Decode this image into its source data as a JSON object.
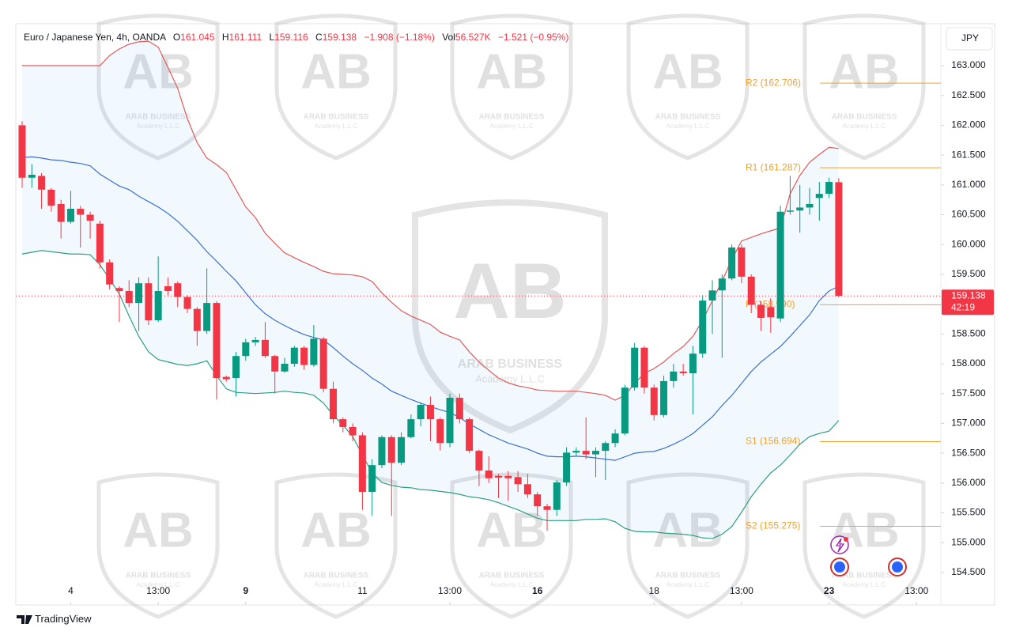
{
  "header": {
    "keys": [
      "O",
      "H",
      "L",
      "C"
    ],
    "change": "−1.908 (−1.18%)",
    "volume_key": "Vol",
    "volume": "56.527K",
    "volume_change": "−1.521 (−0.95%)"
  },
  "watermark": {
    "logo": "AB",
    "name": "ARAB BUSINESS",
    "tagline": "Academy L.L.C"
  },
  "footer": {
    "brand": "TradingView"
  },
  "chart_data": {
    "type": "candlestick",
    "title": "Euro / Japanese Yen, 4h, OANDA",
    "currency": "JPY",
    "up_color": "#089981",
    "down_color": "#f23645",
    "open": [
      162.0,
      161.12,
      161.15,
      160.92,
      160.68,
      160.38,
      160.6,
      160.5,
      160.35,
      159.7,
      159.27,
      159.22,
      159.02,
      159.35,
      158.73,
      159.3,
      159.35,
      159.12,
      158.92,
      158.55,
      159.02,
      157.78,
      157.76,
      158.13,
      158.36,
      158.4,
      158.13,
      157.87,
      158.0,
      158.27,
      157.98,
      158.42,
      157.58,
      157.07,
      156.94,
      156.8,
      155.85,
      156.3,
      156.77,
      156.34,
      156.77,
      157.07,
      157.31,
      157.07,
      156.67,
      157.43,
      157.07,
      156.54,
      156.21,
      156.12,
      156.12,
      156.1,
      155.98,
      155.81,
      155.61,
      155.55,
      156.01,
      156.51,
      156.54,
      156.48,
      156.54,
      156.67,
      156.83,
      157.6,
      158.27,
      157.6,
      157.14,
      157.71,
      157.87,
      157.84,
      158.17,
      159.06,
      159.23,
      159.43,
      159.95,
      159.46,
      158.99,
      158.95,
      158.76,
      160.55,
      160.57,
      160.62,
      160.78,
      160.85,
      161.045
    ],
    "high": [
      162.07,
      161.35,
      161.2,
      160.95,
      160.75,
      160.9,
      160.65,
      160.55,
      160.4,
      159.75,
      159.3,
      159.4,
      159.45,
      159.45,
      159.8,
      159.45,
      159.38,
      159.15,
      158.95,
      159.6,
      159.05,
      157.8,
      158.2,
      158.42,
      158.45,
      158.7,
      158.15,
      158.1,
      158.3,
      158.3,
      158.65,
      158.45,
      157.7,
      157.1,
      157.0,
      156.85,
      156.4,
      156.8,
      156.8,
      156.85,
      157.15,
      157.35,
      157.45,
      157.1,
      157.5,
      157.5,
      157.1,
      156.56,
      156.45,
      156.15,
      156.2,
      156.2,
      156.15,
      155.85,
      155.65,
      156.05,
      156.6,
      156.6,
      157.1,
      156.6,
      156.7,
      156.9,
      157.65,
      158.35,
      158.3,
      157.65,
      157.8,
      158.0,
      158.0,
      158.3,
      159.15,
      159.4,
      159.5,
      160.0,
      160.0,
      159.5,
      159.05,
      159.1,
      160.65,
      161.15,
      161.0,
      160.95,
      161.05,
      161.12,
      161.111
    ],
    "low": [
      160.95,
      160.95,
      160.6,
      160.55,
      160.1,
      160.35,
      159.95,
      160.1,
      159.6,
      159.25,
      158.7,
      158.95,
      158.55,
      158.65,
      158.7,
      159.15,
      158.95,
      158.85,
      158.3,
      158.5,
      157.4,
      157.7,
      157.45,
      158.05,
      158.3,
      158.1,
      157.5,
      157.85,
      157.95,
      157.9,
      157.95,
      157.52,
      157.0,
      156.85,
      156.7,
      155.55,
      155.45,
      156.25,
      155.45,
      156.3,
      156.75,
      156.95,
      156.7,
      156.55,
      156.6,
      157.0,
      156.5,
      155.95,
      156.0,
      155.75,
      155.7,
      155.85,
      155.75,
      155.45,
      155.2,
      155.45,
      155.95,
      156.45,
      156.4,
      156.1,
      156.05,
      156.6,
      156.8,
      157.55,
      157.5,
      157.05,
      157.1,
      157.6,
      157.8,
      157.15,
      158.1,
      158.5,
      158.1,
      159.4,
      159.35,
      158.85,
      158.55,
      158.52,
      158.7,
      160.5,
      160.2,
      160.5,
      160.4,
      160.78,
      159.116
    ],
    "close": [
      161.12,
      161.17,
      160.92,
      160.65,
      160.38,
      160.6,
      160.5,
      160.4,
      159.7,
      159.33,
      159.22,
      159.02,
      159.35,
      158.73,
      159.22,
      159.22,
      159.12,
      158.92,
      158.55,
      159.02,
      157.76,
      157.74,
      158.13,
      158.36,
      158.4,
      158.13,
      157.87,
      158.0,
      158.27,
      157.98,
      158.42,
      157.58,
      157.07,
      156.94,
      156.8,
      155.85,
      156.3,
      156.77,
      156.34,
      156.77,
      157.07,
      157.31,
      157.07,
      156.67,
      157.43,
      157.07,
      156.54,
      156.21,
      156.08,
      156.09,
      156.08,
      155.98,
      155.81,
      155.61,
      155.55,
      156.01,
      156.51,
      156.54,
      156.48,
      156.54,
      156.67,
      156.83,
      157.6,
      158.27,
      157.6,
      157.14,
      157.71,
      157.87,
      157.84,
      158.17,
      159.06,
      159.23,
      159.43,
      159.95,
      159.46,
      158.99,
      158.77,
      158.78,
      160.55,
      160.57,
      160.62,
      160.68,
      160.85,
      161.05,
      159.138
    ],
    "band_fill": "#2196f3",
    "series": [
      {
        "color": "#e05a5a",
        "values": [
          163.0,
          163.0,
          163.0,
          163.0,
          163.0,
          163.0,
          163.0,
          163.0,
          163.0,
          163.17,
          163.28,
          163.36,
          163.4,
          163.41,
          163.31,
          162.97,
          162.62,
          162.11,
          161.71,
          161.45,
          161.34,
          161.21,
          160.92,
          160.63,
          160.45,
          160.19,
          160.02,
          159.86,
          159.78,
          159.7,
          159.63,
          159.55,
          159.51,
          159.5,
          159.49,
          159.46,
          159.38,
          159.19,
          159.03,
          158.89,
          158.8,
          158.73,
          158.66,
          158.53,
          158.46,
          158.4,
          158.2,
          158.03,
          157.89,
          157.76,
          157.68,
          157.63,
          157.6,
          157.56,
          157.55,
          157.54,
          157.54,
          157.54,
          157.52,
          157.5,
          157.47,
          157.39,
          157.47,
          157.67,
          157.84,
          157.92,
          158.03,
          158.17,
          158.29,
          158.46,
          158.73,
          159.06,
          159.39,
          159.75,
          160.06,
          160.12,
          160.18,
          160.23,
          160.28,
          160.85,
          161.16,
          161.38,
          161.51,
          161.63,
          161.61
        ]
      },
      {
        "color": "#3d6fd1",
        "values": [
          161.46,
          161.47,
          161.45,
          161.42,
          161.41,
          161.38,
          161.36,
          161.32,
          161.18,
          161.08,
          160.98,
          160.92,
          160.81,
          160.72,
          160.63,
          160.52,
          160.39,
          160.23,
          160.07,
          159.88,
          159.72,
          159.55,
          159.39,
          159.19,
          158.99,
          158.84,
          158.73,
          158.64,
          158.56,
          158.49,
          158.44,
          158.4,
          158.27,
          158.13,
          158.0,
          157.89,
          157.76,
          157.66,
          157.54,
          157.47,
          157.4,
          157.34,
          157.28,
          157.23,
          157.18,
          157.1,
          156.99,
          156.9,
          156.81,
          156.74,
          156.67,
          156.62,
          156.57,
          156.5,
          156.45,
          156.44,
          156.44,
          156.45,
          156.44,
          156.42,
          156.4,
          156.38,
          156.44,
          156.5,
          156.52,
          156.53,
          156.58,
          156.65,
          156.73,
          156.83,
          156.97,
          157.11,
          157.3,
          157.47,
          157.67,
          157.87,
          158.03,
          158.16,
          158.29,
          158.46,
          158.64,
          158.82,
          159.06,
          159.22,
          159.3
        ]
      },
      {
        "color": "#2e9e80",
        "values": [
          159.84,
          159.87,
          159.9,
          159.88,
          159.86,
          159.84,
          159.84,
          159.83,
          159.66,
          159.42,
          159.17,
          158.8,
          158.46,
          158.2,
          158.07,
          158.03,
          157.99,
          157.97,
          158.0,
          158.05,
          157.8,
          157.58,
          157.52,
          157.51,
          157.5,
          157.51,
          157.52,
          157.54,
          157.52,
          157.51,
          157.47,
          157.34,
          157.14,
          156.97,
          156.78,
          156.47,
          156.17,
          156.01,
          155.96,
          155.93,
          155.92,
          155.89,
          155.88,
          155.86,
          155.84,
          155.81,
          155.77,
          155.75,
          155.72,
          155.67,
          155.61,
          155.55,
          155.48,
          155.41,
          155.37,
          155.37,
          155.37,
          155.37,
          155.39,
          155.39,
          155.4,
          155.35,
          155.24,
          155.19,
          155.18,
          155.18,
          155.16,
          155.15,
          155.14,
          155.12,
          155.08,
          155.07,
          155.14,
          155.27,
          155.51,
          155.77,
          155.98,
          156.17,
          156.3,
          156.47,
          156.65,
          156.78,
          156.83,
          156.87,
          157.05
        ]
      }
    ],
    "pivot_color": "#f0a22e",
    "pivots": [
      {
        "value": 162.706,
        "label": "R2 (162.706)"
      },
      {
        "value": 161.287,
        "label": "R1 (161.287)"
      },
      {
        "value": 158.99,
        "label": "P (158.990)"
      },
      {
        "value": 156.694,
        "label": "S1 (156.694)"
      },
      {
        "value": 155.275,
        "label": "S2 (155.275)"
      }
    ],
    "countdown": "42:19",
    "xlim": [
      -0.65,
      94.5
    ],
    "xticks": [
      {
        "value": 5,
        "label": "4"
      },
      {
        "value": 14,
        "label": "13:00"
      },
      {
        "value": 23,
        "label": "9",
        "bold": true
      },
      {
        "value": 35,
        "label": "11"
      },
      {
        "value": 44,
        "label": "13:00"
      },
      {
        "value": 53,
        "label": "16",
        "bold": true
      },
      {
        "value": 65,
        "label": "18"
      },
      {
        "value": 74,
        "label": "13:00"
      },
      {
        "value": 83,
        "label": "23",
        "bold": true
      },
      {
        "value": 92,
        "label": "13:00"
      }
    ],
    "ylim": [
      153.955,
      163.703
    ],
    "yticks": [
      {
        "value": 154.5,
        "label": "154.500"
      },
      {
        "value": 155,
        "label": "155.000"
      },
      {
        "value": 155.5,
        "label": "155.500"
      },
      {
        "value": 156,
        "label": "156.000"
      },
      {
        "value": 156.5,
        "label": "156.500"
      },
      {
        "value": 157,
        "label": "157.000"
      },
      {
        "value": 157.5,
        "label": "157.500"
      },
      {
        "value": 158,
        "label": "158.000"
      },
      {
        "value": 158.5,
        "label": "158.500"
      },
      {
        "value": 159,
        "label": "159.000"
      },
      {
        "value": 159.5,
        "label": "159.500"
      },
      {
        "value": 160,
        "label": "160.000"
      },
      {
        "value": 160.5,
        "label": "160.500"
      },
      {
        "value": 161,
        "label": "161.000"
      },
      {
        "value": 161.5,
        "label": "161.500"
      },
      {
        "value": 162,
        "label": "162.000"
      },
      {
        "value": 162.5,
        "label": "162.500"
      },
      {
        "value": 163,
        "label": "163.000"
      }
    ],
    "grid": false
  }
}
